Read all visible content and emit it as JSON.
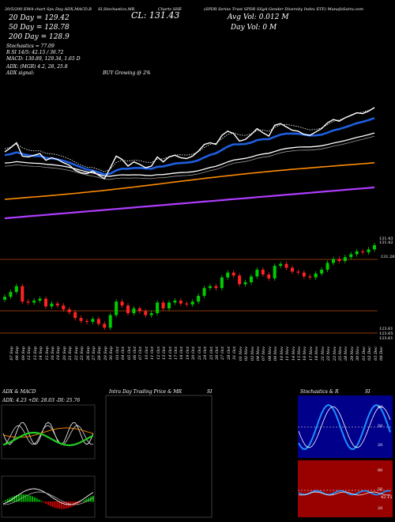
{
  "header": {
    "title_row": [
      "20/5/200 EMA chart Spx Day ADX,MACD,R",
      "SI,Stochastics,MR",
      "Charts SHE",
      "(SPDR Series Trust SPDR SSgA Gender Diversity Index ETF) MunafaSutra.com"
    ],
    "ema20": "20 Day = 129.42",
    "ema50": "50 Day = 128.78",
    "ema200": "200 Day = 128.9",
    "stochastics": "Stochastics = 77.09",
    "rsi": "R SI 14/5: 42.15 / 36.72",
    "macd": "MACD: 130.89, 129.34, 1.65 D",
    "close": "CL: 131.43",
    "avg_vol": "Avg Vol: 0.012 M",
    "day_vol": "Day Vol: 0 M",
    "adx_line": "ADX: (MGR) 4.2, 28, 25.8",
    "adx_signal_label": "ADX signal:",
    "adx_signal": "BUY Growing @ 2%"
  },
  "price_labels": [
    "131.43",
    "131.42",
    "131.26",
    "123.61",
    "123.65",
    "123.61"
  ],
  "dates": [
    "07 Sep",
    "08 Sep",
    "09 Sep",
    "12 Sep",
    "13 Sep",
    "14 Sep",
    "15 Sep",
    "16 Sep",
    "19 Sep",
    "20 Sep",
    "21 Sep",
    "22 Sep",
    "23 Sep",
    "26 Sep",
    "27 Sep",
    "28 Sep",
    "29 Sep",
    "30 Sep",
    "03 Oct",
    "04 Oct",
    "05 Oct",
    "06 Oct",
    "07 Oct",
    "10 Oct",
    "11 Oct",
    "12 Oct",
    "13 Oct",
    "14 Oct",
    "17 Oct",
    "18 Oct",
    "19 Oct",
    "20 Oct",
    "21 Oct",
    "24 Oct",
    "25 Oct",
    "26 Oct",
    "27 Oct",
    "28 Oct",
    "31 Oct",
    "01 Nov",
    "02 Nov",
    "03 Nov",
    "04 Nov",
    "07 Nov",
    "08 Nov",
    "09 Nov",
    "10 Nov",
    "11 Nov",
    "14 Nov",
    "15 Nov",
    "16 Nov",
    "17 Nov",
    "18 Nov",
    "21 Nov",
    "22 Nov",
    "23 Nov",
    "25 Nov",
    "28 Nov",
    "29 Nov",
    "30 Nov",
    "01 Dec",
    "02 Dec",
    "05 Dec",
    "06 Dec"
  ],
  "panels": {
    "adx_title": "ADX & MACD",
    "adx_values": "ADX: 4.23 +DI: 28.03 -DI: 25.76",
    "intra_title": "Intra Day Trading Price & MR",
    "intra_si": "SI",
    "stoch_title": "Stochastics & R",
    "stoch_si": "SI",
    "stoch_scale": [
      "80",
      "50",
      "20"
    ],
    "rsi_scale": [
      "80",
      "50",
      "20"
    ],
    "rsi_value": "42.15"
  },
  "colors": {
    "ema20": "#1e5fe0",
    "ema50": "#ffffff",
    "ema200": "#ff8c00",
    "ema_long": "#b03cff",
    "up": "#00cc00",
    "down": "#ff2222",
    "panel_red": "#990000",
    "panel_blue": "#00008b"
  },
  "chart_data": {
    "type": "line",
    "series": [
      {
        "name": "Close",
        "values": [
          126.1,
          126.6,
          127.2,
          125.6,
          125.5,
          125.7,
          125.9,
          125.1,
          125.4,
          125.2,
          124.8,
          124.5,
          123.9,
          123.6,
          123.5,
          123.8,
          123.3,
          122.9,
          124.2,
          125.6,
          125.2,
          124.4,
          124.9,
          124.6,
          124.2,
          124.4,
          125.5,
          124.9,
          125.5,
          125.7,
          125.4,
          125.3,
          125.6,
          126.2,
          127.0,
          127.2,
          127.0,
          128.1,
          128.6,
          128.3,
          127.4,
          127.6,
          128.2,
          128.9,
          128.4,
          128.0,
          129.3,
          129.5,
          129.1,
          128.7,
          128.6,
          128.2,
          128.1,
          128.5,
          128.9,
          129.6,
          130.0,
          129.8,
          130.2,
          130.5,
          130.8,
          130.7,
          131.0,
          131.43
        ]
      }
    ]
  }
}
